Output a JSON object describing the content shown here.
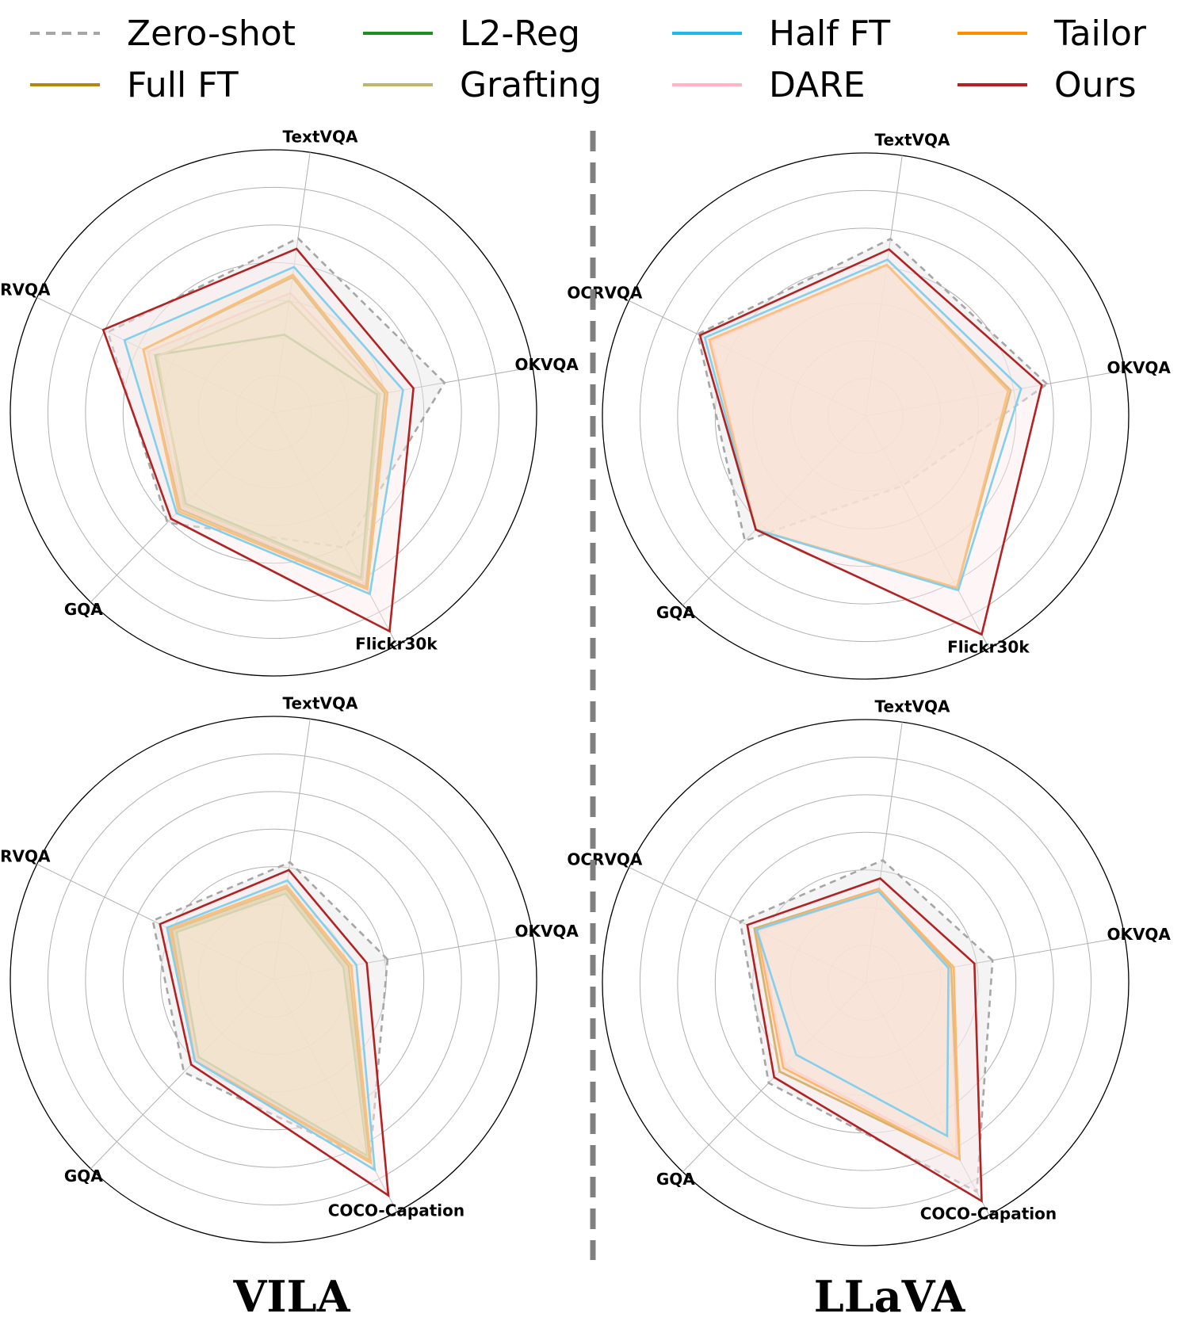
{
  "legend": [
    {
      "name": "Zero-shot",
      "color": "#a6a6a6",
      "dashed": true
    },
    {
      "name": "Full FT",
      "color": "#b8860b",
      "dashed": false
    },
    {
      "name": "L2-Reg",
      "color": "#228b22",
      "dashed": false
    },
    {
      "name": "Grafting",
      "color": "#bdb76b",
      "dashed": false
    },
    {
      "name": "Half FT",
      "color": "#1eb8f0",
      "dashed": false
    },
    {
      "name": "DARE",
      "color": "#ffb6c1",
      "dashed": false
    },
    {
      "name": "Tailor",
      "color": "#ff8c00",
      "dashed": false
    },
    {
      "name": "Ours",
      "color": "#b22222",
      "dashed": false
    }
  ],
  "model_titles": [
    "VILA",
    "LLaVA"
  ],
  "chart_data": [
    {
      "type": "radar",
      "model": "VILA",
      "target_task": "Flickr30k",
      "axes": [
        "OKVQA",
        "TextVQA",
        "OCRVQA",
        "GQA",
        "Flickr30k"
      ],
      "rlim": [
        0,
        1
      ],
      "grid": true,
      "series": [
        {
          "name": "Zero-shot",
          "values": [
            0.66,
            0.67,
            0.7,
            0.58,
            0.58
          ]
        },
        {
          "name": "Full FT",
          "values": [
            0.43,
            0.52,
            0.55,
            0.51,
            0.75
          ]
        },
        {
          "name": "L2-Reg",
          "values": [
            0.4,
            0.3,
            0.5,
            0.48,
            0.71
          ]
        },
        {
          "name": "Grafting",
          "values": [
            0.41,
            0.43,
            0.49,
            0.49,
            0.72
          ]
        },
        {
          "name": "Half FT",
          "values": [
            0.5,
            0.56,
            0.63,
            0.53,
            0.78
          ]
        },
        {
          "name": "DARE",
          "values": [
            0.43,
            0.46,
            0.53,
            0.5,
            0.74
          ]
        },
        {
          "name": "Tailor",
          "values": [
            0.44,
            0.53,
            0.55,
            0.52,
            0.76
          ]
        },
        {
          "name": "Ours",
          "values": [
            0.54,
            0.63,
            0.72,
            0.56,
            0.94
          ]
        }
      ]
    },
    {
      "type": "radar",
      "model": "LLaVA",
      "target_task": "Flickr30k",
      "axes": [
        "OKVQA",
        "TextVQA",
        "OCRVQA",
        "GQA",
        "Flickr30k"
      ],
      "rlim": [
        0,
        1
      ],
      "grid": true,
      "series": [
        {
          "name": "Zero-shot",
          "values": [
            0.7,
            0.68,
            0.71,
            0.66,
            0.3
          ]
        },
        {
          "name": "Full FT",
          "values": [
            0.56,
            0.58,
            0.66,
            0.6,
            0.74
          ]
        },
        {
          "name": "L2-Reg",
          "values": [
            0.56,
            0.58,
            0.66,
            0.6,
            0.74
          ]
        },
        {
          "name": "Grafting",
          "values": [
            0.56,
            0.58,
            0.66,
            0.6,
            0.74
          ]
        },
        {
          "name": "Half FT",
          "values": [
            0.6,
            0.6,
            0.68,
            0.6,
            0.75
          ]
        },
        {
          "name": "DARE",
          "values": [
            0.56,
            0.58,
            0.65,
            0.6,
            0.74
          ]
        },
        {
          "name": "Tailor",
          "values": [
            0.55,
            0.58,
            0.66,
            0.6,
            0.74
          ]
        },
        {
          "name": "Ours",
          "values": [
            0.68,
            0.64,
            0.7,
            0.6,
            0.94
          ]
        }
      ]
    },
    {
      "type": "radar",
      "model": "VILA",
      "target_task": "COCO-Capation",
      "axes": [
        "OKVQA",
        "TextVQA",
        "OCRVQA",
        "GQA",
        "COCO-Capation"
      ],
      "rlim": [
        0,
        1
      ],
      "grid": true,
      "series": [
        {
          "name": "Zero-shot",
          "values": [
            0.44,
            0.45,
            0.51,
            0.49,
            0.78
          ]
        },
        {
          "name": "Full FT",
          "values": [
            0.29,
            0.35,
            0.43,
            0.43,
            0.78
          ]
        },
        {
          "name": "L2-Reg",
          "values": [
            0.27,
            0.33,
            0.41,
            0.41,
            0.76
          ]
        },
        {
          "name": "Grafting",
          "values": [
            0.28,
            0.34,
            0.42,
            0.42,
            0.77
          ]
        },
        {
          "name": "Half FT",
          "values": [
            0.32,
            0.38,
            0.45,
            0.43,
            0.82
          ]
        },
        {
          "name": "DARE",
          "values": [
            0.29,
            0.35,
            0.43,
            0.42,
            0.78
          ]
        },
        {
          "name": "Tailor",
          "values": [
            0.3,
            0.36,
            0.44,
            0.43,
            0.79
          ]
        },
        {
          "name": "Ours",
          "values": [
            0.36,
            0.42,
            0.48,
            0.45,
            0.93
          ]
        }
      ]
    },
    {
      "type": "radar",
      "model": "LLaVA",
      "target_task": "COCO-Capation",
      "axes": [
        "OKVQA",
        "TextVQA",
        "OCRVQA",
        "GQA",
        "COCO-Capation"
      ],
      "rlim": [
        0,
        1
      ],
      "grid": true,
      "series": [
        {
          "name": "Zero-shot",
          "values": [
            0.49,
            0.47,
            0.53,
            0.53,
            0.9
          ]
        },
        {
          "name": "Full FT",
          "values": [
            0.33,
            0.36,
            0.47,
            0.47,
            0.76
          ]
        },
        {
          "name": "L2-Reg",
          "values": [
            0.33,
            0.36,
            0.47,
            0.47,
            0.76
          ]
        },
        {
          "name": "Grafting",
          "values": [
            0.33,
            0.36,
            0.47,
            0.47,
            0.76
          ]
        },
        {
          "name": "Half FT",
          "values": [
            0.32,
            0.35,
            0.46,
            0.38,
            0.66
          ]
        },
        {
          "name": "DARE",
          "values": [
            0.33,
            0.35,
            0.45,
            0.44,
            0.74
          ]
        },
        {
          "name": "Tailor",
          "values": [
            0.34,
            0.36,
            0.46,
            0.45,
            0.76
          ]
        },
        {
          "name": "Ours",
          "values": [
            0.42,
            0.4,
            0.5,
            0.5,
            0.94
          ]
        }
      ]
    }
  ]
}
